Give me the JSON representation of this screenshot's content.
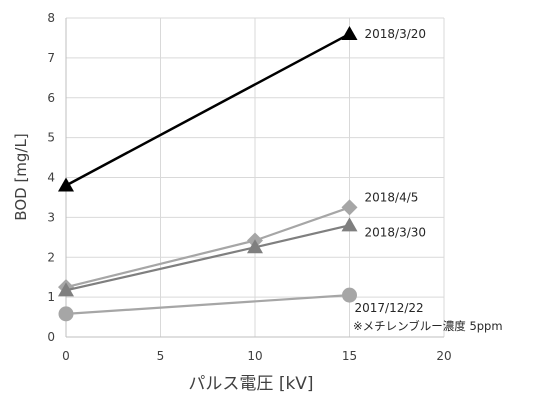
{
  "chart_data": {
    "type": "line",
    "xlabel": "パルス電圧 [kV]",
    "ylabel": "BOD [mg/L]",
    "xlim": [
      0,
      20
    ],
    "ylim": [
      0,
      8
    ],
    "xticks": [
      "0",
      "5",
      "10",
      "15",
      "20"
    ],
    "yticks": [
      "0",
      "1",
      "2",
      "3",
      "4",
      "5",
      "6",
      "7",
      "8"
    ],
    "grid": true,
    "legend": "none",
    "annotation": "※メチレンブルー濃度 5ppm",
    "series": [
      {
        "name": "2018/3/20",
        "marker": "triangle",
        "color": "#000000",
        "x": [
          0,
          15
        ],
        "y": [
          3.8,
          7.6
        ]
      },
      {
        "name": "2018/4/5",
        "marker": "diamond",
        "color": "#a6a6a6",
        "x": [
          0,
          10,
          15
        ],
        "y": [
          1.25,
          2.42,
          3.25
        ]
      },
      {
        "name": "2018/3/30",
        "marker": "triangle",
        "color": "#7f7f7f",
        "x": [
          0,
          10,
          15
        ],
        "y": [
          1.17,
          2.25,
          2.8
        ]
      },
      {
        "name": "2017/12/22",
        "marker": "circle",
        "color": "#a6a6a6",
        "x": [
          0,
          15
        ],
        "y": [
          0.58,
          1.05
        ]
      }
    ]
  }
}
